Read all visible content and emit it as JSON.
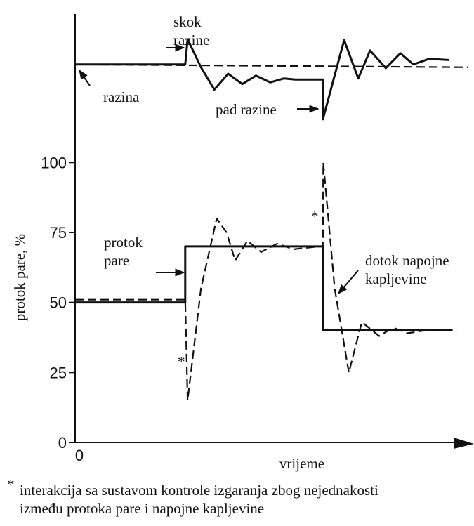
{
  "chart_data": {
    "type": "line",
    "ylabel": "protok pare, %",
    "xlabel": "vrijeme",
    "xlim": [
      0,
      100
    ],
    "ylim": [
      0,
      153
    ],
    "xticks": [
      0
    ],
    "yticks": [
      0,
      25,
      50,
      75,
      100
    ],
    "series": [
      {
        "style": "solid",
        "color": "#111111",
        "x": [
          0,
          28,
          28,
          63,
          63,
          96
        ],
        "values": [
          50,
          50,
          70,
          70,
          40,
          40
        ]
      },
      {
        "style": "dashed",
        "color": "#111111",
        "x": [
          0,
          28,
          28.6,
          32,
          36,
          38.5,
          40.7,
          43.8,
          47.3,
          51.4,
          55.5,
          62,
          63,
          63.1,
          66,
          69.6,
          72.9,
          77.3,
          80.9,
          84.5,
          89,
          97
        ],
        "values": [
          51,
          51,
          15,
          55,
          80,
          75,
          65,
          72,
          68,
          71,
          69,
          70,
          70,
          100,
          55,
          25,
          43,
          38,
          41,
          39,
          40,
          40
        ]
      },
      {
        "style": "solid",
        "color": "#111111",
        "x": [
          0,
          28,
          28.6,
          32,
          35.4,
          38.9,
          42.5,
          46,
          49.6,
          53.1,
          56,
          63,
          63,
          68.4,
          72,
          75,
          79,
          82.7,
          86,
          90,
          95
        ],
        "values": [
          135,
          135,
          144,
          134,
          126,
          131.7,
          128,
          131,
          128.6,
          130,
          129.6,
          129.6,
          115.4,
          143.7,
          130,
          140,
          133.7,
          139,
          135,
          137,
          136.6
        ]
      },
      {
        "style": "dashed",
        "color": "#111111",
        "x": [
          0,
          100
        ],
        "values": [
          135,
          134
        ]
      }
    ],
    "annotations": [
      {
        "lines": [
          "skok",
          "razine"
        ]
      },
      {
        "lines": [
          "razina"
        ]
      },
      {
        "lines": [
          "pad razine"
        ]
      },
      {
        "lines": [
          "protok",
          "pare"
        ]
      },
      {
        "lines": [
          "dotok napojne",
          "kapljevine"
        ]
      },
      {
        "lines": [
          "*"
        ]
      },
      {
        "lines": [
          "*"
        ]
      }
    ],
    "footnote": {
      "mark": "*",
      "lines": [
        "interakcija sa sustavom kontrole izgaranja zbog nejednakosti",
        "između protoka pare i napojne kapljevine"
      ]
    }
  }
}
